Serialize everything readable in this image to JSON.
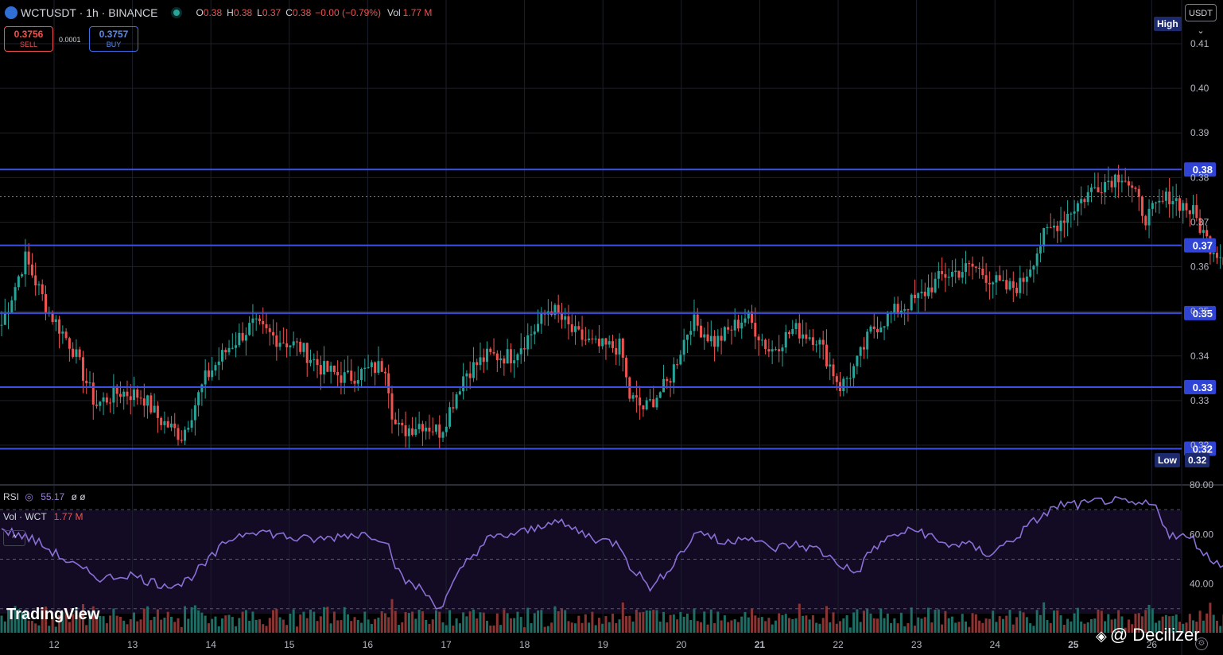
{
  "header": {
    "symbol": "WCTUSDT · 1h · BINANCE",
    "open_k": "O",
    "open_v": "0.38",
    "high_k": "H",
    "high_v": "0.38",
    "low_k": "L",
    "low_v": "0.37",
    "close_k": "C",
    "close_v": "0.38",
    "change_v": "−0.00 (−0.79%)",
    "vol_k": "Vol",
    "vol_v": "1.77 M"
  },
  "trade": {
    "sell_price": "0.3756",
    "sell_label": "SELL",
    "spread": "0.0001",
    "buy_price": "0.3757",
    "buy_label": "BUY"
  },
  "currency_button": "USDT ⌄",
  "markers": {
    "high_label": "High",
    "low_label": "Low",
    "low_value": "0.32"
  },
  "indicators": {
    "rsi_label": "RSI",
    "rsi_value": "55.17",
    "rsi_extra": "ø ø",
    "vol_label": "Vol · WCT",
    "vol_value": "1.77 M",
    "collapse": "^"
  },
  "branding": {
    "tradingview": "TradingView",
    "watermark": "@ Decilizer"
  },
  "colors": {
    "up": "#26a69a",
    "down": "#ef5350",
    "level_line": "#3c50e6",
    "rsi_line": "#8a6fd6",
    "price_line": "#ef5350"
  },
  "chart_data": {
    "type": "candlestick",
    "x_ticks": [
      "12",
      "13",
      "14",
      "15",
      "16",
      "17",
      "18",
      "19",
      "20",
      "21",
      "22",
      "23",
      "24",
      "25",
      "26"
    ],
    "y_ticks": [
      "0.41",
      "0.40",
      "0.39",
      "0.38",
      "0.37",
      "0.36",
      "0.35",
      "0.34",
      "0.33",
      "0.32"
    ],
    "ylim": [
      0.3165,
      0.4175
    ],
    "current_price": 0.3757,
    "horizontal_levels": [
      {
        "value": 0.3818,
        "label": "0.38"
      },
      {
        "value": 0.3648,
        "label": "0.37"
      },
      {
        "value": 0.3496,
        "label": "0.35"
      },
      {
        "value": 0.333,
        "label": "0.33"
      },
      {
        "value": 0.3192,
        "label": "0.32"
      }
    ],
    "series_close": [
      [
        0.0,
        0.347
      ],
      [
        0.3,
        0.362
      ],
      [
        0.6,
        0.35
      ],
      [
        0.9,
        0.342
      ],
      [
        1.2,
        0.329
      ],
      [
        1.5,
        0.332
      ],
      [
        1.8,
        0.331
      ],
      [
        2.0,
        0.326
      ],
      [
        2.3,
        0.322
      ],
      [
        2.6,
        0.335
      ],
      [
        2.9,
        0.342
      ],
      [
        3.2,
        0.347
      ],
      [
        3.5,
        0.344
      ],
      [
        3.8,
        0.342
      ],
      [
        4.1,
        0.337
      ],
      [
        4.4,
        0.335
      ],
      [
        4.7,
        0.337
      ],
      [
        4.9,
        0.338
      ],
      [
        5.0,
        0.325
      ],
      [
        5.1,
        0.323
      ],
      [
        5.35,
        0.325
      ],
      [
        5.6,
        0.323
      ],
      [
        5.9,
        0.336
      ],
      [
        6.2,
        0.34
      ],
      [
        6.5,
        0.34
      ],
      [
        6.8,
        0.346
      ],
      [
        7.0,
        0.351
      ],
      [
        7.3,
        0.345
      ],
      [
        7.6,
        0.342
      ],
      [
        7.9,
        0.342
      ],
      [
        8.0,
        0.331
      ],
      [
        8.2,
        0.328
      ],
      [
        8.5,
        0.334
      ],
      [
        8.8,
        0.348
      ],
      [
        9.1,
        0.343
      ],
      [
        9.5,
        0.349
      ],
      [
        9.8,
        0.341
      ],
      [
        10.1,
        0.346
      ],
      [
        10.4,
        0.344
      ],
      [
        10.7,
        0.333
      ],
      [
        10.9,
        0.338
      ],
      [
        11.1,
        0.346
      ],
      [
        11.4,
        0.35
      ],
      [
        11.7,
        0.353
      ],
      [
        12.0,
        0.358
      ],
      [
        12.4,
        0.36
      ],
      [
        12.8,
        0.355
      ],
      [
        13.0,
        0.356
      ],
      [
        13.3,
        0.367
      ],
      [
        13.6,
        0.372
      ],
      [
        13.95,
        0.378
      ],
      [
        14.3,
        0.381
      ],
      [
        14.6,
        0.371
      ],
      [
        14.9,
        0.376
      ],
      [
        15.2,
        0.372
      ],
      [
        15.4,
        0.365
      ],
      [
        15.6,
        0.362
      ],
      [
        15.8,
        0.365
      ],
      [
        16.0,
        0.368
      ],
      [
        16.2,
        0.362
      ],
      [
        16.5,
        0.36
      ],
      [
        16.8,
        0.366
      ],
      [
        17.0,
        0.37
      ],
      [
        17.3,
        0.372
      ],
      [
        17.6,
        0.368
      ],
      [
        17.9,
        0.366
      ],
      [
        18.2,
        0.379
      ],
      [
        18.5,
        0.376
      ],
      [
        18.7,
        0.378
      ],
      [
        18.9,
        0.368
      ],
      [
        19.0,
        0.365
      ],
      [
        19.1,
        0.356
      ],
      [
        19.3,
        0.348
      ],
      [
        19.5,
        0.35
      ],
      [
        19.7,
        0.357
      ],
      [
        19.9,
        0.36
      ],
      [
        20.05,
        0.345
      ],
      [
        20.15,
        0.328
      ],
      [
        20.4,
        0.348
      ],
      [
        20.7,
        0.357
      ],
      [
        21.0,
        0.36
      ],
      [
        21.3,
        0.357
      ],
      [
        21.6,
        0.35
      ],
      [
        21.9,
        0.36
      ],
      [
        22.05,
        0.368
      ],
      [
        22.2,
        0.376
      ],
      [
        22.35,
        0.396
      ],
      [
        22.5,
        0.386
      ],
      [
        22.7,
        0.377
      ],
      [
        22.9,
        0.362
      ],
      [
        23.1,
        0.357
      ],
      [
        23.3,
        0.364
      ],
      [
        23.5,
        0.361
      ],
      [
        23.8,
        0.371
      ],
      [
        24.0,
        0.368
      ],
      [
        24.1,
        0.362
      ],
      [
        24.3,
        0.37
      ],
      [
        24.5,
        0.376
      ],
      [
        24.7,
        0.377
      ],
      [
        24.95,
        0.3757
      ]
    ],
    "rsi": {
      "ylim": [
        28,
        80
      ],
      "ticks": [
        "80.00",
        "60.00",
        "40.00"
      ],
      "bands": [
        70,
        50,
        30
      ],
      "values": [
        [
          0.0,
          62
        ],
        [
          0.4,
          58
        ],
        [
          0.7,
          52
        ],
        [
          1.0,
          46
        ],
        [
          1.3,
          42
        ],
        [
          1.6,
          44
        ],
        [
          2.0,
          40
        ],
        [
          2.3,
          40
        ],
        [
          2.6,
          48
        ],
        [
          2.9,
          58
        ],
        [
          3.2,
          62
        ],
        [
          3.5,
          60
        ],
        [
          3.8,
          58
        ],
        [
          4.1,
          58
        ],
        [
          4.4,
          60
        ],
        [
          4.7,
          60
        ],
        [
          4.9,
          58
        ],
        [
          5.1,
          42
        ],
        [
          5.35,
          38
        ],
        [
          5.6,
          30
        ],
        [
          5.9,
          48
        ],
        [
          6.2,
          58
        ],
        [
          6.5,
          60
        ],
        [
          6.8,
          62
        ],
        [
          7.0,
          66
        ],
        [
          7.3,
          62
        ],
        [
          7.6,
          58
        ],
        [
          7.9,
          56
        ],
        [
          8.0,
          48
        ],
        [
          8.3,
          38
        ],
        [
          8.6,
          50
        ],
        [
          8.9,
          62
        ],
        [
          9.2,
          56
        ],
        [
          9.5,
          60
        ],
        [
          9.8,
          54
        ],
        [
          10.1,
          56
        ],
        [
          10.4,
          54
        ],
        [
          10.7,
          48
        ],
        [
          10.9,
          44
        ],
        [
          11.1,
          54
        ],
        [
          11.4,
          60
        ],
        [
          11.7,
          62
        ],
        [
          12.0,
          56
        ],
        [
          12.3,
          56
        ],
        [
          12.6,
          52
        ],
        [
          12.9,
          58
        ],
        [
          13.2,
          66
        ],
        [
          13.5,
          72
        ],
        [
          13.8,
          72
        ],
        [
          14.1,
          74
        ],
        [
          14.4,
          72
        ],
        [
          14.7,
          72
        ],
        [
          14.9,
          60
        ],
        [
          15.2,
          58
        ],
        [
          15.4,
          50
        ],
        [
          15.6,
          48
        ],
        [
          15.9,
          52
        ],
        [
          16.2,
          54
        ],
        [
          16.5,
          50
        ],
        [
          16.8,
          56
        ],
        [
          17.0,
          58
        ],
        [
          17.3,
          58
        ],
        [
          17.6,
          54
        ],
        [
          17.9,
          52
        ],
        [
          18.1,
          62
        ],
        [
          18.4,
          50
        ],
        [
          18.7,
          58
        ],
        [
          18.9,
          52
        ],
        [
          19.1,
          46
        ],
        [
          19.3,
          40
        ],
        [
          19.6,
          44
        ],
        [
          19.9,
          38
        ],
        [
          20.1,
          32
        ],
        [
          20.4,
          48
        ],
        [
          20.7,
          56
        ],
        [
          21.0,
          54
        ],
        [
          21.3,
          52
        ],
        [
          21.6,
          52
        ],
        [
          21.9,
          58
        ],
        [
          22.1,
          62
        ],
        [
          22.3,
          70
        ],
        [
          22.5,
          62
        ],
        [
          22.7,
          54
        ],
        [
          23.0,
          50
        ],
        [
          23.3,
          54
        ],
        [
          23.6,
          54
        ],
        [
          23.9,
          52
        ],
        [
          24.1,
          54
        ],
        [
          24.4,
          58
        ],
        [
          24.7,
          56
        ]
      ]
    }
  }
}
